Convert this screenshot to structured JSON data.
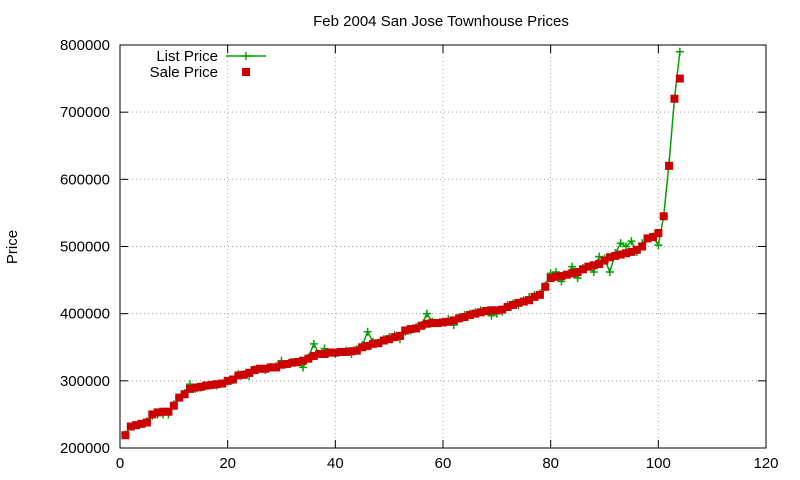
{
  "chart_data": {
    "type": "line",
    "title": "Feb 2004 San Jose Townhouse Prices",
    "xlabel": "",
    "ylabel": "Price",
    "xlim": [
      0,
      120
    ],
    "ylim": [
      200000,
      800000
    ],
    "xticks": [
      0,
      20,
      40,
      60,
      80,
      100,
      120
    ],
    "yticks": [
      200000,
      300000,
      400000,
      500000,
      600000,
      700000,
      800000
    ],
    "xtick_labels": [
      "0",
      "20",
      "40",
      "60",
      "80",
      "100",
      "120"
    ],
    "ytick_labels": [
      "200000",
      "300000",
      "400000",
      "500000",
      "600000",
      "700000",
      "800000"
    ],
    "grid": true,
    "legend_position": "top-left",
    "x": [
      1,
      2,
      3,
      4,
      5,
      6,
      7,
      8,
      9,
      10,
      11,
      12,
      13,
      14,
      15,
      16,
      17,
      18,
      19,
      20,
      21,
      22,
      23,
      24,
      25,
      26,
      27,
      28,
      29,
      30,
      31,
      32,
      33,
      34,
      35,
      36,
      37,
      38,
      39,
      40,
      41,
      42,
      43,
      44,
      45,
      46,
      47,
      48,
      49,
      50,
      51,
      52,
      53,
      54,
      55,
      56,
      57,
      58,
      59,
      60,
      61,
      62,
      63,
      64,
      65,
      66,
      67,
      68,
      69,
      70,
      71,
      72,
      73,
      74,
      75,
      76,
      77,
      78,
      79,
      80,
      81,
      82,
      83,
      84,
      85,
      86,
      87,
      88,
      89,
      90,
      91,
      92,
      93,
      94,
      95,
      96,
      97,
      98,
      99,
      100,
      101,
      102,
      103,
      104
    ],
    "series": [
      {
        "name": "List Price",
        "color": "#00a000",
        "marker": "plus",
        "values": [
          220000,
          232000,
          234000,
          236000,
          240000,
          248000,
          250000,
          250000,
          250000,
          265000,
          275000,
          282000,
          295000,
          288000,
          290000,
          292000,
          293000,
          293000,
          296000,
          300000,
          301000,
          310000,
          310000,
          307000,
          317000,
          318000,
          316000,
          321000,
          322000,
          330000,
          325000,
          328000,
          327000,
          320000,
          335000,
          355000,
          340000,
          348000,
          342000,
          340000,
          343000,
          345000,
          340000,
          347000,
          353000,
          373000,
          358000,
          357000,
          362000,
          365000,
          368000,
          362000,
          373000,
          375000,
          380000,
          383000,
          400000,
          388000,
          386000,
          388000,
          392000,
          383000,
          395000,
          398000,
          400000,
          402000,
          405000,
          404000,
          397000,
          400000,
          403000,
          413000,
          415000,
          412000,
          420000,
          425000,
          428000,
          430000,
          442000,
          460000,
          462000,
          448000,
          458000,
          470000,
          453000,
          468000,
          470000,
          462000,
          485000,
          482000,
          462000,
          490000,
          505000,
          500000,
          508000,
          492000,
          505000,
          512000,
          515000,
          502000,
          545000,
          625000,
          720000,
          790000
        ]
      },
      {
        "name": "Sale Price",
        "color": "#cc0000",
        "marker": "square",
        "values": [
          219000,
          232000,
          234000,
          236000,
          238000,
          250000,
          253000,
          254000,
          254000,
          263000,
          275000,
          280000,
          288000,
          290000,
          291000,
          293000,
          294000,
          295000,
          296000,
          300000,
          302000,
          308000,
          309000,
          312000,
          316000,
          318000,
          318000,
          320000,
          320000,
          324000,
          325000,
          327000,
          328000,
          330000,
          333000,
          337000,
          340000,
          340000,
          342000,
          342000,
          343000,
          343000,
          344000,
          345000,
          350000,
          352000,
          355000,
          356000,
          360000,
          362000,
          365000,
          367000,
          375000,
          377000,
          378000,
          382000,
          385000,
          386000,
          386000,
          387000,
          388000,
          390000,
          393000,
          395000,
          398000,
          400000,
          402000,
          404000,
          405000,
          405000,
          406000,
          410000,
          413000,
          416000,
          418000,
          420000,
          425000,
          428000,
          440000,
          453000,
          455000,
          456000,
          458000,
          460000,
          462000,
          466000,
          470000,
          472000,
          474000,
          479000,
          484000,
          486000,
          488000,
          490000,
          492000,
          495000,
          500000,
          512000,
          514000,
          520000,
          545000,
          620000,
          720000,
          750000
        ]
      }
    ]
  }
}
